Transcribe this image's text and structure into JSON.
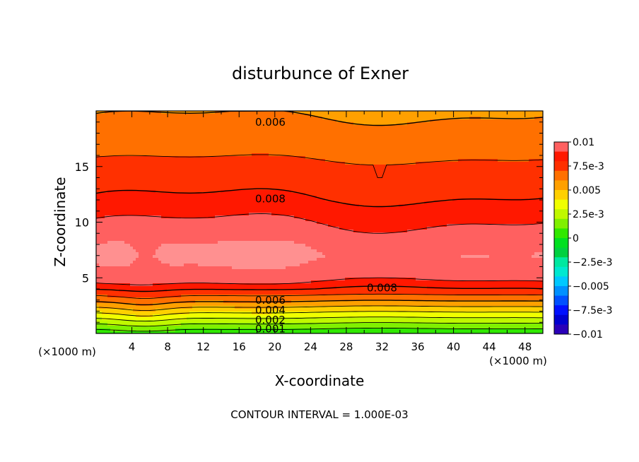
{
  "chart_data": {
    "type": "heatmap",
    "title": "disturbunce of Exner",
    "xlabel": "X-coordinate",
    "ylabel": "Z-coordinate",
    "xlim": [
      0,
      50
    ],
    "ylim": [
      0,
      20
    ],
    "x_ticks": [
      4,
      8,
      12,
      16,
      20,
      24,
      28,
      32,
      36,
      40,
      44,
      48
    ],
    "y_ticks": [
      5,
      10,
      15
    ],
    "x_units_label_left": "(×1000 m)",
    "x_units_label_right": "(×1000 m)",
    "footer": "CONTOUR INTERVAL = 1.000E-03",
    "colorbar": {
      "range": [
        -0.01,
        0.01
      ],
      "labels": [
        "0.01",
        "7.5e-3",
        "0.005",
        "2.5e-3",
        "0",
        "-2.5e-3",
        "-0.005",
        "-7.5e-3",
        "-0.01"
      ],
      "levels": [
        -0.01,
        -0.009,
        -0.008,
        -0.007,
        -0.006,
        -0.005,
        -0.004,
        -0.003,
        -0.002,
        -0.001,
        0,
        0.001,
        0.002,
        0.003,
        0.004,
        0.005,
        0.006,
        0.007,
        0.008,
        0.009,
        0.01
      ],
      "colors": [
        "#7a00b0",
        "#2a00b8",
        "#0000d0",
        "#0010ff",
        "#0050ff",
        "#0090ff",
        "#00c8ff",
        "#00e8d0",
        "#00e8a0",
        "#00d040",
        "#00e020",
        "#30e800",
        "#80f000",
        "#c0f800",
        "#f0ff00",
        "#ffd000",
        "#ffa000",
        "#ff7000",
        "#ff3000",
        "#ff1800",
        "#ff6060",
        "#ff9090"
      ]
    },
    "field_profile": {
      "description_units": "z in 1000 m, value of Exner disturbance",
      "z": [
        0,
        0.5,
        1,
        1.5,
        2,
        2.5,
        3,
        3.5,
        4,
        4.5,
        5,
        6,
        7,
        8,
        9,
        10,
        11,
        12,
        13,
        14,
        15,
        16,
        17,
        18,
        19,
        20
      ],
      "value": [
        0.0002,
        0.0012,
        0.0022,
        0.0032,
        0.0042,
        0.0052,
        0.0062,
        0.0071,
        0.008,
        0.0088,
        0.0094,
        0.0098,
        0.0101,
        0.0099,
        0.0094,
        0.009,
        0.0086,
        0.0081,
        0.0077,
        0.0074,
        0.0072,
        0.0069,
        0.0066,
        0.0063,
        0.0061,
        0.0059
      ]
    },
    "contour_labels": [
      {
        "text": "0.006",
        "x": 19.5,
        "z": 19.0
      },
      {
        "text": "0.008",
        "x": 19.5,
        "z": 12.1
      },
      {
        "text": "0.008",
        "x": 32.0,
        "z": 4.1
      },
      {
        "text": "0.006",
        "x": 19.5,
        "z": 3.0
      },
      {
        "text": "0.004",
        "x": 19.5,
        "z": 2.1
      },
      {
        "text": "0.002",
        "x": 19.5,
        "z": 1.2
      },
      {
        "text": "0.001",
        "x": 19.5,
        "z": 0.4
      }
    ],
    "grid": false
  }
}
